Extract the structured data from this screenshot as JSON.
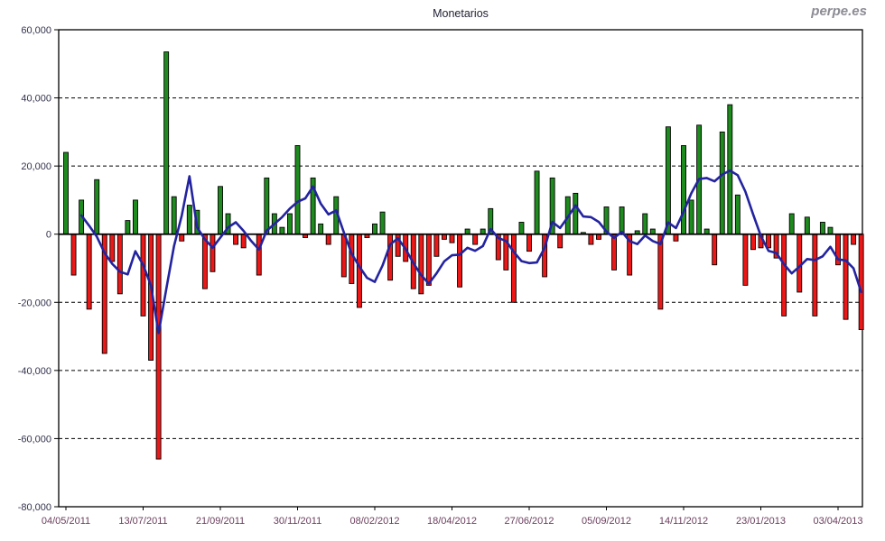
{
  "header": {
    "title": "Monetarios",
    "watermark": "perpe.es"
  },
  "chart_data": {
    "type": "bar",
    "overlay": "line",
    "title": "Monetarios",
    "xlabel": "",
    "ylabel": "",
    "ylim": [
      -80000,
      60000
    ],
    "grid": "horizontal dashed every 20,000; solid zero axis",
    "legend": "none",
    "y_ticks": [
      60000,
      40000,
      20000,
      0,
      -20000,
      -40000,
      -60000,
      -80000
    ],
    "y_tick_labels": [
      "60,000",
      "40,000",
      "20,000",
      "0",
      "-20,000",
      "-40,000",
      "-60,000",
      "-80,000"
    ],
    "x_tick_positions": [
      0,
      10,
      20,
      30,
      40,
      50,
      60,
      70,
      80,
      90,
      100
    ],
    "x_tick_labels": [
      "04/05/2011",
      "13/07/2011",
      "21/09/2011",
      "30/11/2011",
      "08/02/2012",
      "18/04/2012",
      "27/06/2012",
      "05/09/2012",
      "14/11/2012",
      "23/01/2013",
      "03/04/2013"
    ],
    "bars": {
      "positive_color": "#1e8b1e",
      "negative_color": "#ee1717",
      "values": [
        24000,
        -12000,
        10000,
        -22000,
        16000,
        -35000,
        -8000,
        -17500,
        4000,
        10000,
        -24000,
        -37000,
        -66000,
        53500,
        11000,
        -2000,
        8500,
        7000,
        -16000,
        -11000,
        14000,
        6000,
        -3000,
        -4000,
        0,
        -12000,
        16500,
        6000,
        2000,
        6000,
        26000,
        -1000,
        16500,
        3000,
        -3000,
        11000,
        -12500,
        -14500,
        -21500,
        -1000,
        3000,
        6500,
        -13500,
        -6500,
        -8000,
        -16000,
        -17500,
        -15000,
        -6500,
        -1500,
        -2500,
        -15500,
        1500,
        -3000,
        1500,
        7500,
        -7500,
        -10500,
        -20000,
        3500,
        -5000,
        18500,
        -12500,
        16500,
        -4000,
        11000,
        12000,
        500,
        -3000,
        -1500,
        8000,
        -10500,
        8000,
        -12000,
        1000,
        6000,
        1500,
        -22000,
        31500,
        -2000,
        26000,
        10000,
        32000,
        1500,
        -9000,
        30000,
        38000,
        11500,
        -15000,
        -4500,
        -4000,
        -4000,
        -7000,
        -24000,
        6000,
        -17000,
        5000,
        -24000,
        3500,
        2000,
        -9000,
        -25000,
        -3000,
        -28000
      ]
    },
    "line": {
      "color": "#2323a0",
      "values": [
        null,
        null,
        5500,
        2500,
        -700,
        -5500,
        -8700,
        -11000,
        -11800,
        -5000,
        -9000,
        -15000,
        -29000,
        -16000,
        -3500,
        5500,
        17000,
        2000,
        -1500,
        -4000,
        -1000,
        2000,
        3500,
        1000,
        -2000,
        -4500,
        1000,
        3000,
        5000,
        7500,
        9500,
        10500,
        14000,
        9000,
        5800,
        7000,
        500,
        -5700,
        -9500,
        -12800,
        -14000,
        -9200,
        -3000,
        -1200,
        -4400,
        -8500,
        -12000,
        -14500,
        -11500,
        -8000,
        -6200,
        -6000,
        -4000,
        -4900,
        -3500,
        1500,
        -1100,
        -2000,
        -5200,
        -7900,
        -8500,
        -8300,
        -4000,
        3600,
        1800,
        5000,
        8450,
        5200,
        5000,
        3600,
        800,
        -1100,
        700,
        -2000,
        -2900,
        -400,
        -2000,
        -2900,
        3450,
        1800,
        6600,
        12000,
        16200,
        16500,
        15500,
        17500,
        18700,
        17300,
        12500,
        5800,
        -500,
        -4900,
        -5500,
        -8800,
        -11500,
        -9500,
        -7300,
        -7600,
        -6500,
        -3700,
        -7400,
        -7700,
        -10000,
        -17000
      ]
    }
  }
}
